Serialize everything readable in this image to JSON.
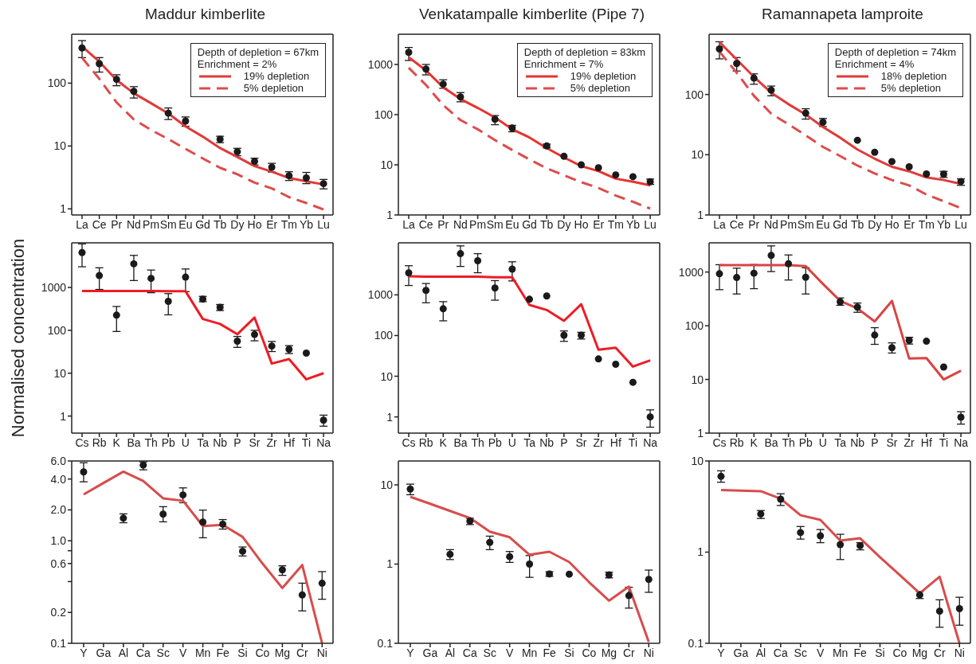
{
  "chart_data": [
    {
      "type": "line",
      "title": "Maddur kimberlite",
      "categories": [
        "La",
        "Ce",
        "Pr",
        "Nd",
        "Pm",
        "Sm",
        "Eu",
        "Gd",
        "Tb",
        "Dy",
        "Ho",
        "Er",
        "Tm",
        "Yb",
        "Lu"
      ],
      "log": true,
      "ylim": [
        0.8,
        600
      ],
      "yticks": [
        1,
        10,
        100
      ],
      "legend": "top right",
      "annotations": [
        "Depth of depletion = 67km",
        "Enrichment = 2%"
      ],
      "series": [
        {
          "type": "scatter",
          "color": "#1a1a1a",
          "marker": "circle",
          "values": [
            363,
            204,
            115,
            74,
            null,
            33.3,
            25,
            null,
            12.8,
            8.1,
            5.7,
            4.6,
            3.37,
            3.1,
            2.52
          ],
          "errors": [
            [
              255,
              475
            ],
            [
              150,
              255
            ],
            [
              91,
              136
            ],
            [
              58,
              88
            ],
            null,
            [
              26.4,
              40.3
            ],
            [
              20.6,
              29
            ],
            null,
            [
              11.3,
              14.3
            ],
            [
              7.0,
              9.2
            ],
            [
              5.0,
              6.4
            ],
            [
              3.85,
              5.3
            ],
            [
              2.83,
              3.9
            ],
            [
              2.52,
              3.8
            ],
            [
              2.08,
              2.94
            ]
          ]
        },
        {
          "type": "line",
          "name": "19% depletion",
          "color": "#e03a3a",
          "line_style": "solid",
          "values": [
            384,
            220,
            112,
            69,
            48,
            33,
            20.5,
            14.1,
            9.3,
            6.7,
            4.8,
            3.9,
            3.1,
            2.75,
            2.45
          ]
        },
        {
          "type": "line",
          "name": "5% depletion",
          "color": "#dd4c4c",
          "line_style": "dashed",
          "values": [
            254,
            117,
            49.5,
            26.5,
            18,
            12.9,
            9.0,
            6.35,
            4.5,
            3.56,
            2.62,
            2.12,
            1.54,
            1.24,
            0.98
          ]
        }
      ]
    },
    {
      "type": "line",
      "title": "Venkatampalle kimberlite (Pipe 7)",
      "categories": [
        "La",
        "Ce",
        "Pr",
        "Nd",
        "Pm",
        "Sm",
        "Eu",
        "Gd",
        "Tb",
        "Dy",
        "Ho",
        "Er",
        "Tm",
        "Yb",
        "Lu"
      ],
      "log": true,
      "ylim": [
        1,
        4000
      ],
      "yticks": [
        1,
        10,
        100,
        1000
      ],
      "legend": "top right",
      "annotations": [
        "Depth of depletion = 83km",
        "Enrichment = 7%"
      ],
      "series": [
        {
          "type": "scatter",
          "color": "#1a1a1a",
          "marker": "circle",
          "values": [
            1740,
            810,
            405,
            225,
            null,
            81,
            54,
            null,
            23.7,
            14.8,
            10,
            8.7,
            6.3,
            5.8,
            4.6
          ],
          "errors": [
            [
              1200,
              2180
            ],
            [
              620,
              1000
            ],
            [
              335,
              495
            ],
            [
              180,
              275
            ],
            null,
            [
              63,
              96
            ],
            [
              45.5,
              61
            ],
            null,
            [
              21.7,
              25.8
            ],
            null,
            null,
            null,
            null,
            null,
            [
              4.07,
              5.2
            ]
          ]
        },
        {
          "type": "line",
          "name": "19% depletion",
          "color": "#e8322e",
          "line_style": "solid",
          "values": [
            1390,
            760,
            350,
            205,
            136,
            88,
            51,
            35,
            21.5,
            14,
            9.4,
            7.5,
            5.3,
            4.6,
            3.9
          ]
        },
        {
          "type": "line",
          "name": "5% depletion",
          "color": "#dd4c4c",
          "line_style": "dashed",
          "values": [
            860,
            390,
            154,
            78,
            51,
            31,
            19.7,
            12.8,
            8.5,
            6.2,
            4.5,
            3.46,
            2.43,
            1.83,
            1.34
          ]
        }
      ]
    },
    {
      "type": "line",
      "title": "Ramannapeta lamproite",
      "categories": [
        "La",
        "Ce",
        "Pr",
        "Nd",
        "Pm",
        "Sm",
        "Eu",
        "Gd",
        "Tb",
        "Dy",
        "Ho",
        "Er",
        "Tm",
        "Yb",
        "Lu"
      ],
      "log": true,
      "ylim": [
        1,
        1000
      ],
      "yticks": [
        1,
        10,
        100
      ],
      "legend": "top right",
      "annotations": [
        "Depth of depletion = 74km",
        "Enrichment = 4%"
      ],
      "series": [
        {
          "type": "scatter",
          "color": "#1a1a1a",
          "marker": "circle",
          "values": [
            570,
            327,
            187,
            118,
            null,
            49,
            34.6,
            null,
            17.4,
            11,
            7.7,
            6.3,
            4.8,
            4.75,
            3.6
          ],
          "errors": [
            [
              390,
              750
            ],
            [
              245,
              410
            ],
            [
              148,
              220
            ],
            [
              95,
              138
            ],
            null,
            [
              39,
              58
            ],
            [
              29.4,
              40
            ],
            null,
            null,
            null,
            null,
            null,
            null,
            [
              4.2,
              5.3
            ],
            [
              3.1,
              3.97
            ]
          ]
        },
        {
          "type": "line",
          "name": "18% depletion",
          "color": "#e03a3a",
          "line_style": "solid",
          "values": [
            740,
            380,
            196,
            107,
            69,
            46.6,
            28.8,
            19.2,
            12.2,
            8.6,
            6.3,
            5.3,
            4.2,
            3.8,
            3.27
          ]
        },
        {
          "type": "line",
          "name": "5% depletion",
          "color": "#dd4c4c",
          "line_style": "dashed",
          "values": [
            515,
            230,
            95,
            48,
            32,
            21,
            13.5,
            9.5,
            6.6,
            4.9,
            3.8,
            3.1,
            2.18,
            1.69,
            1.3
          ]
        }
      ]
    },
    {
      "type": "line",
      "ylabel": "Normalised concentration",
      "categories": [
        "Cs",
        "Rb",
        "K",
        "Ba",
        "Th",
        "Pb",
        "U",
        "Ta",
        "Nb",
        "P",
        "Sr",
        "Zr",
        "Hf",
        "Ti",
        "Na"
      ],
      "log": true,
      "ylim": [
        0.4,
        11000
      ],
      "yticks": [
        1,
        10,
        100,
        1000
      ],
      "series": [
        {
          "type": "scatter",
          "color": "#1a1a1a",
          "marker": "circle",
          "values": [
            6500,
            1900,
            226,
            3550,
            1630,
            475,
            1740,
            535,
            345,
            56,
            80,
            43,
            36,
            29.5,
            0.8
          ],
          "errors": [
            [
              3040,
              10400
            ],
            [
              900,
              2880
            ],
            [
              94,
              360
            ],
            [
              1450,
              5600
            ],
            [
              755,
              2550
            ],
            [
              230,
              720
            ],
            [
              800,
              2700
            ],
            [
              465,
              620
            ],
            [
              290,
              400
            ],
            [
              40,
              72
            ],
            [
              57,
              100
            ],
            [
              32,
              55
            ],
            [
              28.7,
              44
            ],
            null,
            [
              0.58,
              1.05
            ]
          ]
        },
        {
          "type": "line",
          "color": "#ee1c24",
          "line_style": "solid",
          "values": [
            830,
            830,
            830,
            830,
            830,
            815,
            815,
            184,
            141,
            81,
            198,
            16.8,
            21.3,
            7.2,
            10
          ]
        }
      ]
    },
    {
      "type": "line",
      "categories": [
        "Cs",
        "Rb",
        "K",
        "Ba",
        "Th",
        "Pb",
        "U",
        "Ta",
        "Nb",
        "P",
        "Sr",
        "Zr",
        "Hf",
        "Ti",
        "Na"
      ],
      "log": true,
      "ylim": [
        0.4,
        19000
      ],
      "yticks": [
        1,
        10,
        100,
        1000
      ],
      "series": [
        {
          "type": "scatter",
          "color": "#1a1a1a",
          "marker": "circle",
          "values": [
            3460,
            1290,
            455,
            10300,
            6900,
            1470,
            4300,
            780,
            940,
            102,
            102,
            26.6,
            19.7,
            7.1,
            1.0
          ],
          "errors": [
            [
              1700,
              5200
            ],
            [
              640,
              1900
            ],
            [
              230,
              680
            ],
            [
              5000,
              16000
            ],
            [
              3500,
              10300
            ],
            [
              740,
              2240
            ],
            [
              2200,
              6500
            ],
            null,
            null,
            [
              72,
              130
            ],
            [
              82,
              120
            ],
            null,
            null,
            null,
            [
              0.56,
              1.49
            ]
          ]
        },
        {
          "type": "line",
          "color": "#ee1c24",
          "line_style": "solid",
          "values": [
            2850,
            2800,
            2800,
            2800,
            2800,
            2700,
            2700,
            565,
            425,
            230,
            590,
            45,
            50,
            17.3,
            24.6
          ]
        }
      ]
    },
    {
      "type": "line",
      "categories": [
        "Cs",
        "Rb",
        "K",
        "Ba",
        "Th",
        "Pb",
        "U",
        "Ta",
        "Nb",
        "P",
        "Sr",
        "Zr",
        "Hf",
        "Ti",
        "Na"
      ],
      "log": true,
      "ylim": [
        1,
        3500
      ],
      "yticks": [
        1,
        10,
        100,
        1000
      ],
      "series": [
        {
          "type": "scatter",
          "color": "#1a1a1a",
          "marker": "circle",
          "values": [
            930,
            790,
            950,
            2040,
            1430,
            800,
            null,
            280,
            222,
            67,
            39,
            53.5,
            51.5,
            17,
            1.98
          ],
          "errors": [
            [
              470,
              1370
            ],
            [
              390,
              1180
            ],
            [
              490,
              1380
            ],
            [
              1020,
              3070
            ],
            [
              710,
              2080
            ],
            [
              390,
              1200
            ],
            null,
            [
              240,
              330
            ],
            [
              178,
              265
            ],
            [
              45,
              92
            ],
            [
              31,
              48
            ],
            [
              45.6,
              61
            ],
            null,
            null,
            [
              1.47,
              2.5
            ]
          ]
        },
        {
          "type": "line",
          "color": "#d94444",
          "line_style": "solid",
          "values": [
            1350,
            1350,
            1350,
            1350,
            1350,
            1290,
            600,
            290,
            210,
            120,
            290,
            24.5,
            25,
            10,
            14.5
          ]
        }
      ]
    },
    {
      "type": "line",
      "categories": [
        "Y",
        "Ga",
        "Al",
        "Ca",
        "Sc",
        "V",
        "Mn",
        "Fe",
        "Si",
        "Co",
        "Mg",
        "Cr",
        "Ni"
      ],
      "log": true,
      "ylim": [
        0.1,
        6.0
      ],
      "yticks": [
        0.1,
        0.2,
        {
          "value": 0.4,
          "label": null
        },
        0.6,
        {
          "value": 0.8,
          "label": null
        },
        {
          "value": 1,
          "label": "1.0"
        },
        {
          "value": 2,
          "label": "2.0"
        },
        {
          "value": 4,
          "label": "4.0"
        },
        {
          "value": 6,
          "label": "6.0"
        }
      ],
      "series": [
        {
          "type": "scatter",
          "color": "#1a1a1a",
          "marker": "circle",
          "values": [
            4.69,
            null,
            1.66,
            5.47,
            1.82,
            2.8,
            1.52,
            1.45,
            0.79,
            null,
            0.52,
            0.296,
            0.385
          ],
          "errors": [
            [
              3.76,
              5.77
            ],
            null,
            [
              1.5,
              1.83
            ],
            [
              4.92,
              5.88
            ],
            [
              1.53,
              2.15
            ],
            [
              2.35,
              3.28
            ],
            [
              1.07,
              1.99
            ],
            [
              1.3,
              1.61
            ],
            [
              0.71,
              0.87
            ],
            null,
            [
              0.46,
              0.57
            ],
            [
              0.207,
              0.386
            ],
            [
              0.269,
              0.5
            ]
          ]
        },
        {
          "type": "line",
          "color": "#d84c4c",
          "line_style": "solid",
          "values": [
            2.83,
            3.66,
            4.72,
            3.83,
            2.59,
            2.46,
            1.39,
            1.43,
            1.09,
            0.6,
            0.346,
            0.58,
            0.1
          ]
        }
      ]
    },
    {
      "type": "line",
      "categories": [
        "Y",
        "Ga",
        "Al",
        "Ca",
        "Sc",
        "V",
        "Mn",
        "Fe",
        "Si",
        "Co",
        "Mg",
        "Cr",
        "Ni"
      ],
      "log": true,
      "ylim": [
        0.1,
        20
      ],
      "yticks": [
        0.1,
        1,
        10
      ],
      "series": [
        {
          "type": "scatter",
          "color": "#1a1a1a",
          "marker": "circle",
          "values": [
            8.84,
            null,
            1.33,
            3.49,
            1.88,
            1.24,
            1.0,
            0.75,
            0.746,
            null,
            0.73,
            0.4,
            0.64
          ],
          "errors": [
            [
              7.5,
              10.2
            ],
            null,
            [
              1.14,
              1.52
            ],
            [
              3.15,
              3.79
            ],
            [
              1.52,
              2.25
            ],
            [
              1.05,
              1.44
            ],
            [
              0.68,
              1.28
            ],
            [
              0.7,
              0.8
            ],
            null,
            null,
            [
              0.67,
              0.79
            ],
            [
              0.278,
              0.51
            ],
            [
              0.44,
              0.84
            ]
          ]
        },
        {
          "type": "line",
          "color": "#d84c4c",
          "line_style": "solid",
          "values": [
            7.06,
            5.77,
            4.68,
            3.82,
            2.57,
            2.18,
            1.31,
            1.43,
            1.06,
            0.59,
            0.345,
            0.52,
            0.104
          ]
        }
      ]
    },
    {
      "type": "line",
      "categories": [
        "Y",
        "Ga",
        "Al",
        "Ca",
        "Sc",
        "V",
        "Mn",
        "Fe",
        "Si",
        "Co",
        "Mg",
        "Cr",
        "Ni"
      ],
      "log": true,
      "ylim": [
        0.1,
        10
      ],
      "yticks": [
        0.1,
        1,
        10
      ],
      "series": [
        {
          "type": "scatter",
          "color": "#1a1a1a",
          "marker": "circle",
          "values": [
            6.78,
            null,
            2.62,
            3.81,
            1.64,
            1.51,
            1.21,
            1.18,
            null,
            null,
            0.34,
            0.225,
            0.24
          ],
          "errors": [
            [
              5.85,
              7.8
            ],
            null,
            [
              2.34,
              2.86
            ],
            [
              3.25,
              4.37
            ],
            [
              1.39,
              1.91
            ],
            [
              1.27,
              1.77
            ],
            [
              0.83,
              1.57
            ],
            [
              1.06,
              1.27
            ],
            null,
            null,
            [
              0.31,
              0.37
            ],
            [
              0.15,
              0.3
            ],
            [
              0.158,
              0.32
            ]
          ]
        },
        {
          "type": "line",
          "color": "#d84c4c",
          "line_style": "solid",
          "values": [
            4.79,
            4.73,
            4.66,
            3.86,
            2.54,
            2.26,
            1.34,
            1.42,
            0.88,
            0.56,
            0.354,
            0.537,
            0.1
          ]
        }
      ]
    }
  ]
}
